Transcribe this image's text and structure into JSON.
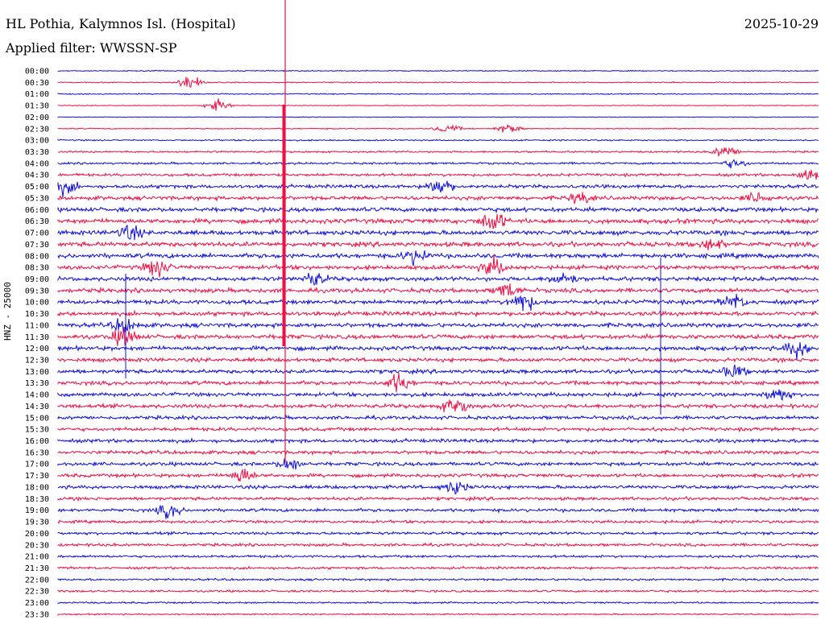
{
  "header": {
    "station": "HL Pothia, Kalymnos Isl. (Hospital)",
    "date": "2025-10-29",
    "filter": "Applied filter: WWSSN-SP",
    "channel": "HNZ - 25000"
  },
  "colors": {
    "blue": "#1010d8",
    "red": "#ee1044"
  },
  "chart_data": {
    "type": "line",
    "title": "HL Pothia, Kalymnos Isl. (Hospital)",
    "ylabel": "HNZ - 25000",
    "rows": [
      "00:00",
      "00:30",
      "01:00",
      "01:30",
      "02:00",
      "02:30",
      "03:00",
      "03:30",
      "04:00",
      "04:30",
      "05:00",
      "05:30",
      "06:00",
      "06:30",
      "07:00",
      "07:30",
      "08:00",
      "08:30",
      "09:00",
      "09:30",
      "10:00",
      "10:30",
      "11:00",
      "11:30",
      "12:00",
      "12:30",
      "13:00",
      "13:30",
      "14:00",
      "14:30",
      "15:00",
      "15:30",
      "16:00",
      "16:30",
      "17:00",
      "17:30",
      "18:00",
      "18:30",
      "19:00",
      "19:30",
      "20:00",
      "20:30",
      "21:00",
      "21:30",
      "22:00",
      "22:30",
      "23:00",
      "23:30"
    ],
    "noise_level": [
      0.3,
      0.3,
      0.3,
      0.2,
      0.2,
      0.3,
      0.4,
      0.5,
      0.6,
      0.8,
      1.0,
      1.1,
      1.2,
      1.3,
      1.3,
      1.3,
      1.3,
      1.2,
      1.2,
      1.2,
      1.2,
      1.2,
      1.2,
      1.2,
      1.2,
      1.1,
      1.1,
      1.1,
      1.1,
      1.1,
      1.0,
      1.0,
      1.0,
      1.0,
      1.0,
      1.0,
      1.0,
      0.9,
      0.9,
      0.8,
      0.8,
      0.8,
      0.7,
      0.7,
      0.6,
      0.6,
      0.5,
      0.4
    ],
    "grid": false,
    "legend": "none"
  }
}
